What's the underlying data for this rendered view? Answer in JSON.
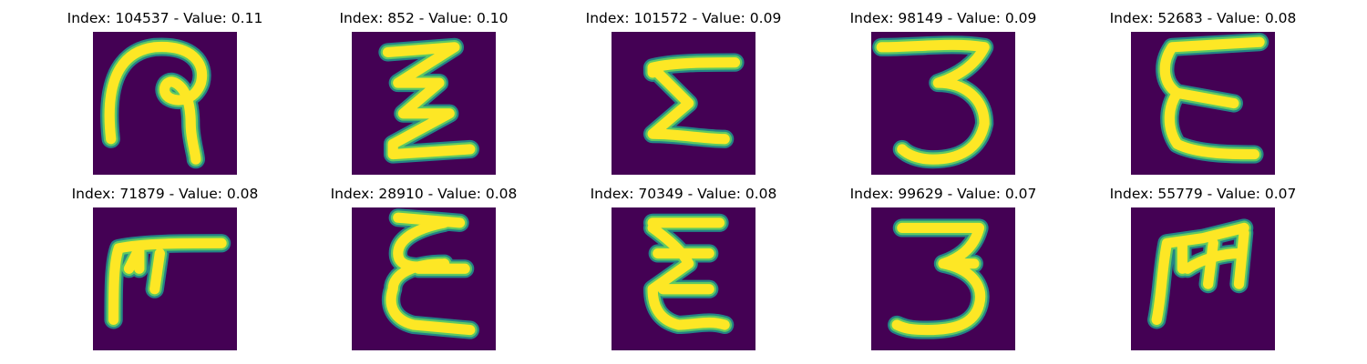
{
  "colors": {
    "background": "#440154",
    "stroke_outer": "#21918c",
    "stroke_mid": "#5ec962",
    "stroke_core": "#fde725"
  },
  "panels": [
    {
      "title": "Index: 104537 - Value: 0.11",
      "glyph": "handwritten-9-loop"
    },
    {
      "title": "Index: 852 - Value: 0.10",
      "glyph": "handwritten-zigzag-z"
    },
    {
      "title": "Index: 101572 - Value: 0.09",
      "glyph": "handwritten-sigma"
    },
    {
      "title": "Index: 98149 - Value: 0.09",
      "glyph": "handwritten-3"
    },
    {
      "title": "Index: 52683 - Value: 0.08",
      "glyph": "handwritten-E"
    },
    {
      "title": "Index: 71879 - Value: 0.08",
      "glyph": "handwritten-F"
    },
    {
      "title": "Index: 28910 - Value: 0.08",
      "glyph": "handwritten-E-curly"
    },
    {
      "title": "Index: 70349 - Value: 0.08",
      "glyph": "handwritten-sigma-2"
    },
    {
      "title": "Index: 99629 - Value: 0.07",
      "glyph": "handwritten-3-b"
    },
    {
      "title": "Index: 55779 - Value: 0.07",
      "glyph": "handwritten-M"
    }
  ]
}
